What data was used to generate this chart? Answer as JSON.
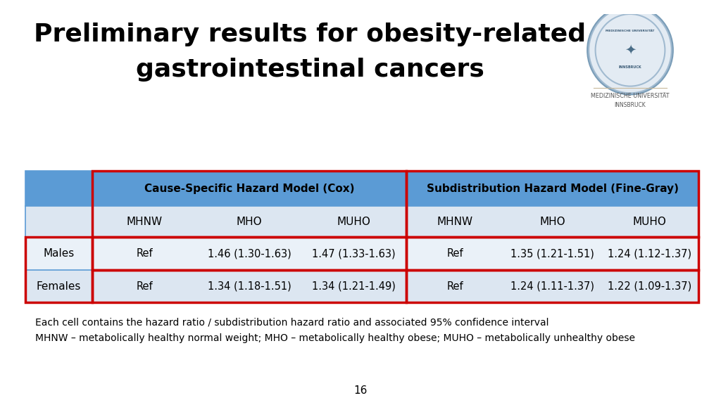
{
  "title_line1": "Preliminary results for obesity-related",
  "title_line2": "gastrointestinal cancers",
  "title_fontsize": 26,
  "background_color": "#ffffff",
  "table_header_bg": "#5b9bd5",
  "table_subheader_bg": "#dce6f1",
  "table_row1_bg": "#eaf1f8",
  "table_row2_bg": "#dce6f1",
  "red_border": "#cc0000",
  "col_header1": "Cause-Specific Hazard Model (Cox)",
  "col_header2": "Subdistribution Hazard Model (Fine-Gray)",
  "sub_cols": [
    "MHNW",
    "MHO",
    "MUHO",
    "MHNW",
    "MHO",
    "MUHO"
  ],
  "row_labels": [
    "Males",
    "Females"
  ],
  "data": [
    [
      "Ref",
      "1.46 (1.30-1.63)",
      "1.47 (1.33-1.63)",
      "Ref",
      "1.35 (1.21-1.51)",
      "1.24 (1.12-1.37)"
    ],
    [
      "Ref",
      "1.34 (1.18-1.51)",
      "1.34 (1.21-1.49)",
      "Ref",
      "1.24 (1.11-1.37)",
      "1.22 (1.09-1.37)"
    ]
  ],
  "footnote1": "Each cell contains the hazard ratio / subdistribution hazard ratio and associated 95% confidence interval",
  "footnote2": "MHNW – metabolically healthy normal weight; MHO – metabolically healthy obese; MUHO – metabolically unhealthy obese",
  "page_number": "16",
  "univ_line1": "MEDIZINISCHE UNIVERSITÄT",
  "univ_line2": "INNSBRUCK",
  "lw_red": 2.5,
  "lw_blue": 1.2
}
